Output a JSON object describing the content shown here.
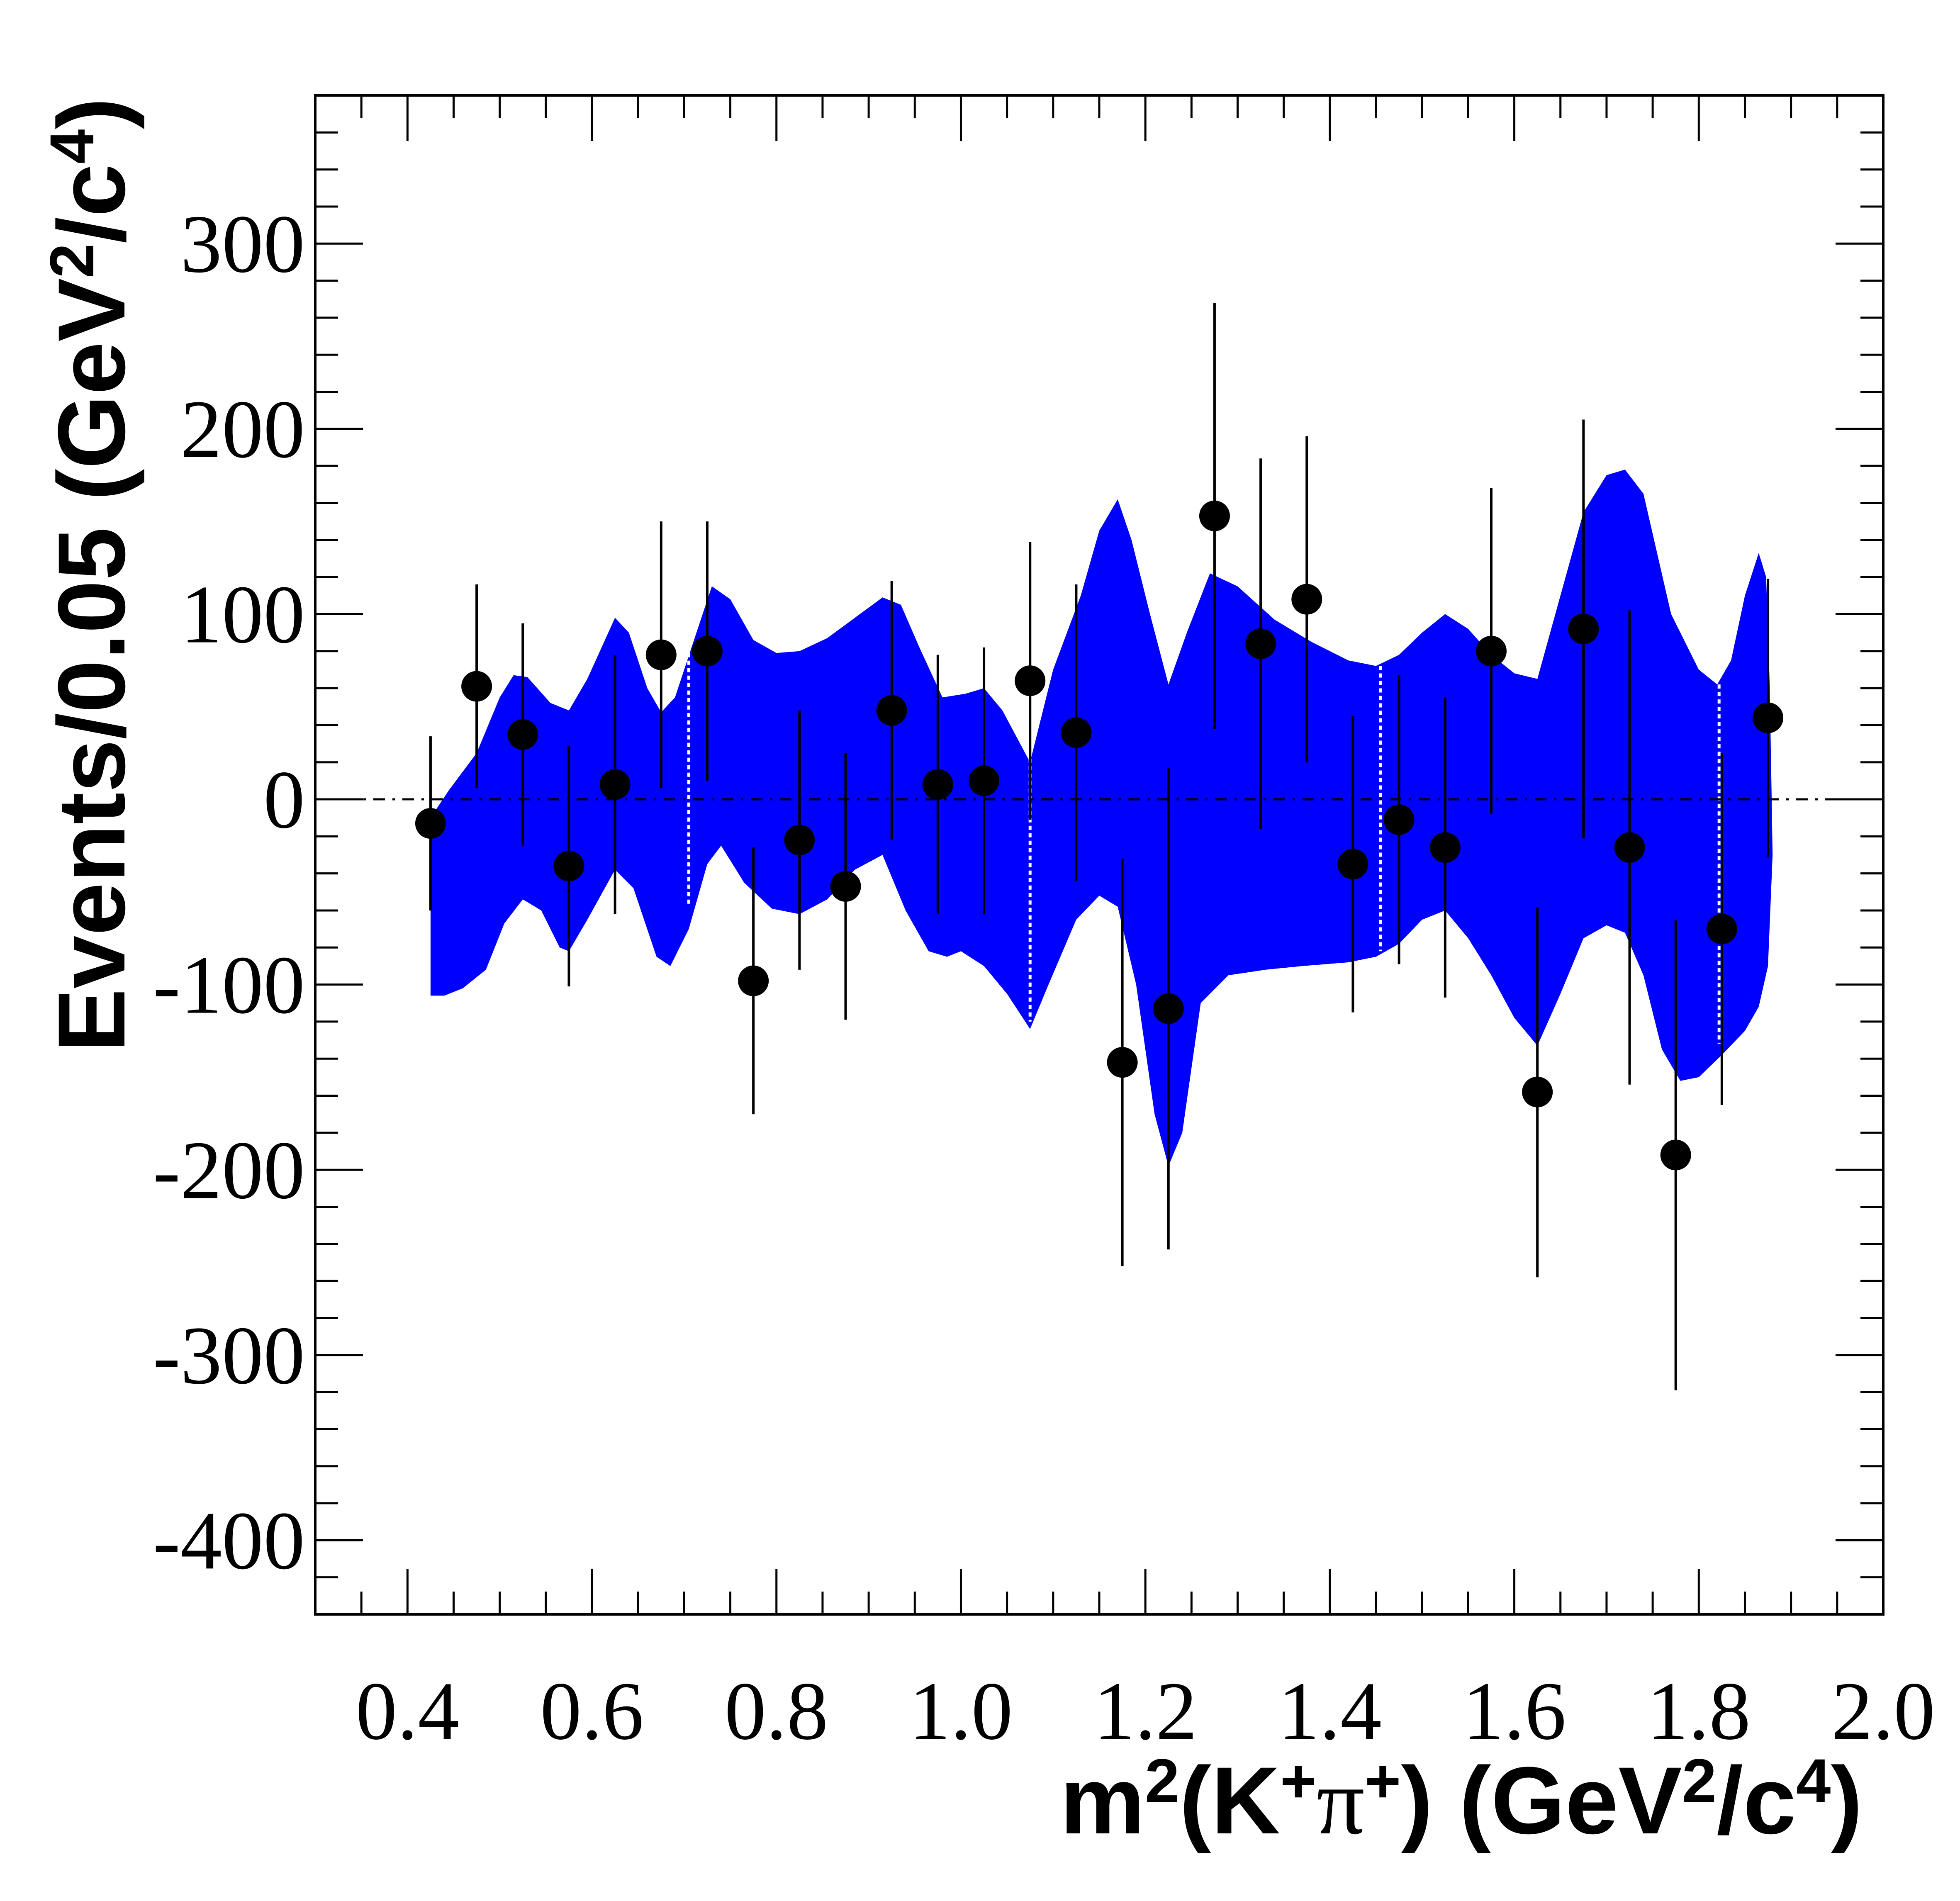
{
  "chart_data": {
    "type": "scatter",
    "title": "",
    "xlabel": {
      "base": "m",
      "sup": "2",
      "mid": "(K",
      "sup2": "+",
      "pi": "π",
      "sup3": "+",
      "end": ") (GeV",
      "sup4": "2",
      "slash": "/c",
      "sup5": "4",
      "close": ")"
    },
    "ylabel": {
      "base": "Events/0.05 (GeV",
      "sup": "2",
      "slash": "/c",
      "sup2": "4",
      "close": ")"
    },
    "xlim": [
      0.3,
      2.0
    ],
    "ylim": [
      -440,
      380
    ],
    "x_ticks": [
      {
        "value": 0.4,
        "label": "0.4"
      },
      {
        "value": 0.6,
        "label": "0.6"
      },
      {
        "value": 0.8,
        "label": "0.8"
      },
      {
        "value": 1.0,
        "label": "1.0"
      },
      {
        "value": 1.2,
        "label": "1.2"
      },
      {
        "value": 1.4,
        "label": "1.4"
      },
      {
        "value": 1.6,
        "label": "1.6"
      },
      {
        "value": 1.8,
        "label": "1.8"
      },
      {
        "value": 2.0,
        "label": "2.0"
      }
    ],
    "y_ticks": [
      {
        "value": 300,
        "label": "300"
      },
      {
        "value": 200,
        "label": "200"
      },
      {
        "value": 100,
        "label": "100"
      },
      {
        "value": 0,
        "label": "0"
      },
      {
        "value": -100,
        "label": "-100"
      },
      {
        "value": -200,
        "label": "-200"
      },
      {
        "value": -300,
        "label": "-300"
      },
      {
        "value": -400,
        "label": "-400"
      }
    ],
    "reference_line": {
      "y": 0,
      "style": "dashed"
    },
    "series": [
      {
        "name": "data",
        "color": "#000000",
        "points": [
          {
            "x": 0.425,
            "y": -13,
            "err": 47
          },
          {
            "x": 0.475,
            "y": 61,
            "err": 55
          },
          {
            "x": 0.525,
            "y": 35,
            "err": 60
          },
          {
            "x": 0.575,
            "y": -36,
            "err": 65
          },
          {
            "x": 0.625,
            "y": 8,
            "err": 70
          },
          {
            "x": 0.675,
            "y": 78,
            "err": 72
          },
          {
            "x": 0.725,
            "y": 80,
            "err": 70
          },
          {
            "x": 0.775,
            "y": -98,
            "err": 72
          },
          {
            "x": 0.825,
            "y": -22,
            "err": 70
          },
          {
            "x": 0.875,
            "y": -47,
            "err": 72
          },
          {
            "x": 0.925,
            "y": 48,
            "err": 70
          },
          {
            "x": 0.975,
            "y": 8,
            "err": 70
          },
          {
            "x": 1.025,
            "y": 10,
            "err": 72
          },
          {
            "x": 1.075,
            "y": 64,
            "err": 75
          },
          {
            "x": 1.125,
            "y": 36,
            "err": 80
          },
          {
            "x": 1.175,
            "y": -142,
            "err": 110
          },
          {
            "x": 1.225,
            "y": -113,
            "err": 130
          },
          {
            "x": 1.275,
            "y": 153,
            "err": 115
          },
          {
            "x": 1.325,
            "y": 84,
            "err": 100
          },
          {
            "x": 1.375,
            "y": 108,
            "err": 88
          },
          {
            "x": 1.425,
            "y": -35,
            "err": 80
          },
          {
            "x": 1.475,
            "y": -11,
            "err": 78
          },
          {
            "x": 1.525,
            "y": -26,
            "err": 81
          },
          {
            "x": 1.575,
            "y": 80,
            "err": 88
          },
          {
            "x": 1.625,
            "y": -158,
            "err": 100
          },
          {
            "x": 1.675,
            "y": 92,
            "err": 113
          },
          {
            "x": 1.725,
            "y": -26,
            "err": 128
          },
          {
            "x": 1.775,
            "y": -192,
            "err": 127
          },
          {
            "x": 1.825,
            "y": -70,
            "err": 95
          },
          {
            "x": 1.875,
            "y": 44,
            "err": 75
          }
        ]
      },
      {
        "name": "uncertainty band",
        "color": "#0000ff",
        "upper": [
          {
            "x": 0.425,
            "y": -10
          },
          {
            "x": 0.445,
            "y": 5
          },
          {
            "x": 0.475,
            "y": 25
          },
          {
            "x": 0.5,
            "y": 55
          },
          {
            "x": 0.515,
            "y": 67
          },
          {
            "x": 0.53,
            "y": 66
          },
          {
            "x": 0.555,
            "y": 52
          },
          {
            "x": 0.575,
            "y": 48
          },
          {
            "x": 0.595,
            "y": 65
          },
          {
            "x": 0.625,
            "y": 98
          },
          {
            "x": 0.64,
            "y": 90
          },
          {
            "x": 0.66,
            "y": 60
          },
          {
            "x": 0.675,
            "y": 47
          },
          {
            "x": 0.69,
            "y": 55
          },
          {
            "x": 0.71,
            "y": 85
          },
          {
            "x": 0.73,
            "y": 115
          },
          {
            "x": 0.75,
            "y": 108
          },
          {
            "x": 0.775,
            "y": 86
          },
          {
            "x": 0.8,
            "y": 79
          },
          {
            "x": 0.825,
            "y": 80
          },
          {
            "x": 0.855,
            "y": 87
          },
          {
            "x": 0.885,
            "y": 98
          },
          {
            "x": 0.915,
            "y": 109
          },
          {
            "x": 0.935,
            "y": 105
          },
          {
            "x": 0.955,
            "y": 82
          },
          {
            "x": 0.98,
            "y": 55
          },
          {
            "x": 1.005,
            "y": 57
          },
          {
            "x": 1.025,
            "y": 60
          },
          {
            "x": 1.045,
            "y": 48
          },
          {
            "x": 1.075,
            "y": 20
          },
          {
            "x": 1.1,
            "y": 70
          },
          {
            "x": 1.13,
            "y": 110
          },
          {
            "x": 1.15,
            "y": 145
          },
          {
            "x": 1.17,
            "y": 162
          },
          {
            "x": 1.185,
            "y": 140
          },
          {
            "x": 1.205,
            "y": 100
          },
          {
            "x": 1.225,
            "y": 62
          },
          {
            "x": 1.245,
            "y": 90
          },
          {
            "x": 1.27,
            "y": 122
          },
          {
            "x": 1.3,
            "y": 115
          },
          {
            "x": 1.34,
            "y": 97
          },
          {
            "x": 1.38,
            "y": 85
          },
          {
            "x": 1.42,
            "y": 75
          },
          {
            "x": 1.45,
            "y": 72
          },
          {
            "x": 1.475,
            "y": 78
          },
          {
            "x": 1.5,
            "y": 90
          },
          {
            "x": 1.525,
            "y": 100
          },
          {
            "x": 1.55,
            "y": 92
          },
          {
            "x": 1.575,
            "y": 78
          },
          {
            "x": 1.6,
            "y": 68
          },
          {
            "x": 1.625,
            "y": 65
          },
          {
            "x": 1.65,
            "y": 110
          },
          {
            "x": 1.675,
            "y": 155
          },
          {
            "x": 1.7,
            "y": 175
          },
          {
            "x": 1.72,
            "y": 178
          },
          {
            "x": 1.74,
            "y": 165
          },
          {
            "x": 1.77,
            "y": 100
          },
          {
            "x": 1.8,
            "y": 70
          },
          {
            "x": 1.82,
            "y": 62
          },
          {
            "x": 1.835,
            "y": 75
          },
          {
            "x": 1.85,
            "y": 110
          },
          {
            "x": 1.865,
            "y": 133
          },
          {
            "x": 1.873,
            "y": 120
          },
          {
            "x": 1.877,
            "y": 60
          },
          {
            "x": 1.88,
            "y": -30
          }
        ],
        "lower": [
          {
            "x": 0.425,
            "y": -106
          },
          {
            "x": 0.44,
            "y": -106
          },
          {
            "x": 0.46,
            "y": -102
          },
          {
            "x": 0.485,
            "y": -92
          },
          {
            "x": 0.505,
            "y": -67
          },
          {
            "x": 0.525,
            "y": -54
          },
          {
            "x": 0.545,
            "y": -60
          },
          {
            "x": 0.565,
            "y": -80
          },
          {
            "x": 0.575,
            "y": -82
          },
          {
            "x": 0.595,
            "y": -65
          },
          {
            "x": 0.625,
            "y": -38
          },
          {
            "x": 0.645,
            "y": -48
          },
          {
            "x": 0.67,
            "y": -85
          },
          {
            "x": 0.685,
            "y": -90
          },
          {
            "x": 0.705,
            "y": -70
          },
          {
            "x": 0.725,
            "y": -35
          },
          {
            "x": 0.74,
            "y": -25
          },
          {
            "x": 0.765,
            "y": -45
          },
          {
            "x": 0.795,
            "y": -59
          },
          {
            "x": 0.825,
            "y": -62
          },
          {
            "x": 0.855,
            "y": -54
          },
          {
            "x": 0.885,
            "y": -38
          },
          {
            "x": 0.915,
            "y": -30
          },
          {
            "x": 0.94,
            "y": -60
          },
          {
            "x": 0.965,
            "y": -82
          },
          {
            "x": 0.985,
            "y": -85
          },
          {
            "x": 1.0,
            "y": -82
          },
          {
            "x": 1.025,
            "y": -90
          },
          {
            "x": 1.05,
            "y": -105
          },
          {
            "x": 1.075,
            "y": -124
          },
          {
            "x": 1.095,
            "y": -100
          },
          {
            "x": 1.125,
            "y": -65
          },
          {
            "x": 1.15,
            "y": -52
          },
          {
            "x": 1.17,
            "y": -58
          },
          {
            "x": 1.19,
            "y": -100
          },
          {
            "x": 1.21,
            "y": -170
          },
          {
            "x": 1.225,
            "y": -198
          },
          {
            "x": 1.24,
            "y": -180
          },
          {
            "x": 1.26,
            "y": -110
          },
          {
            "x": 1.29,
            "y": -95
          },
          {
            "x": 1.33,
            "y": -92
          },
          {
            "x": 1.37,
            "y": -90
          },
          {
            "x": 1.42,
            "y": -88
          },
          {
            "x": 1.45,
            "y": -85
          },
          {
            "x": 1.475,
            "y": -78
          },
          {
            "x": 1.5,
            "y": -65
          },
          {
            "x": 1.525,
            "y": -60
          },
          {
            "x": 1.55,
            "y": -75
          },
          {
            "x": 1.575,
            "y": -95
          },
          {
            "x": 1.6,
            "y": -118
          },
          {
            "x": 1.625,
            "y": -133
          },
          {
            "x": 1.65,
            "y": -105
          },
          {
            "x": 1.675,
            "y": -75
          },
          {
            "x": 1.7,
            "y": -68
          },
          {
            "x": 1.72,
            "y": -72
          },
          {
            "x": 1.74,
            "y": -95
          },
          {
            "x": 1.76,
            "y": -135
          },
          {
            "x": 1.78,
            "y": -152
          },
          {
            "x": 1.8,
            "y": -150
          },
          {
            "x": 1.825,
            "y": -138
          },
          {
            "x": 1.85,
            "y": -125
          },
          {
            "x": 1.865,
            "y": -112
          },
          {
            "x": 1.875,
            "y": -90
          },
          {
            "x": 1.88,
            "y": -30
          }
        ]
      }
    ],
    "band_gaps": [
      {
        "x": 0.705,
        "top": 95,
        "bottom": -58
      },
      {
        "x": 1.075,
        "top": 22,
        "bottom": -120
      },
      {
        "x": 1.455,
        "top": 72,
        "bottom": -82
      },
      {
        "x": 1.822,
        "top": 62,
        "bottom": -132
      }
    ]
  }
}
